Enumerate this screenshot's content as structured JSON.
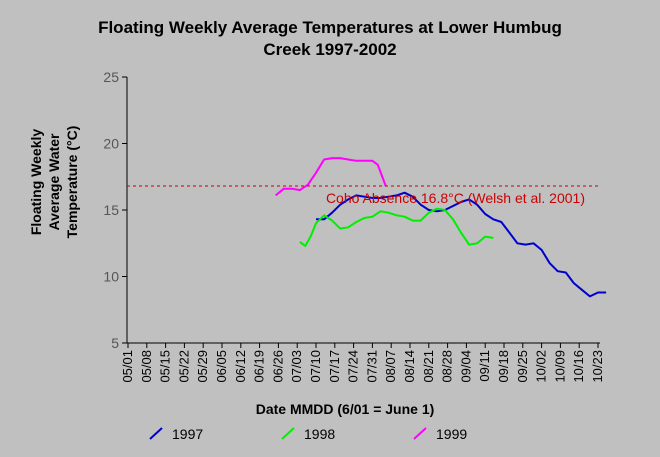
{
  "chart_data": {
    "type": "line",
    "title_line1": "Floating Weekly Average Temperatures at Lower Humbug",
    "title_line2": "Creek 1997-2002",
    "xlabel": "Date MMDD (6/01 = June 1)",
    "ylabel_lines": [
      "Floating Weekly",
      "Average Water",
      "Temperature (°C)"
    ],
    "ylim": [
      5,
      25
    ],
    "yticks": [
      "5",
      "10",
      "15",
      "20",
      "25"
    ],
    "x_ticks": [
      "05/01",
      "05/08",
      "05/15",
      "05/22",
      "05/29",
      "06/05",
      "06/12",
      "06/19",
      "06/26",
      "07/03",
      "07/10",
      "07/17",
      "07/24",
      "07/31",
      "08/07",
      "08/14",
      "08/21",
      "08/28",
      "09/04",
      "09/11",
      "09/18",
      "09/25",
      "10/02",
      "10/09",
      "10/16",
      "10/23"
    ],
    "grid": false,
    "legend_position": "bottom",
    "reference_line": {
      "value": 16.8,
      "label": "Coho Absence 16.8°C (Welsh et al. 2001)",
      "color": "#cc0000"
    },
    "series": [
      {
        "name": "1997",
        "color": "#0000cc",
        "points": [
          [
            "07/10",
            14.3
          ],
          [
            "07/13",
            14.3
          ],
          [
            "07/16",
            14.8
          ],
          [
            "07/19",
            15.4
          ],
          [
            "07/22",
            15.8
          ],
          [
            "07/25",
            16.1
          ],
          [
            "07/28",
            16.0
          ],
          [
            "07/31",
            15.9
          ],
          [
            "08/03",
            15.9
          ],
          [
            "08/06",
            16.0
          ],
          [
            "08/09",
            16.1
          ],
          [
            "08/12",
            16.3
          ],
          [
            "08/15",
            16.0
          ],
          [
            "08/18",
            15.4
          ],
          [
            "08/21",
            15.0
          ],
          [
            "08/24",
            14.9
          ],
          [
            "08/27",
            15.0
          ],
          [
            "08/30",
            15.3
          ],
          [
            "09/02",
            15.6
          ],
          [
            "09/05",
            15.8
          ],
          [
            "09/08",
            15.4
          ],
          [
            "09/11",
            14.7
          ],
          [
            "09/14",
            14.3
          ],
          [
            "09/17",
            14.1
          ],
          [
            "09/20",
            13.3
          ],
          [
            "09/23",
            12.5
          ],
          [
            "09/26",
            12.4
          ],
          [
            "09/29",
            12.5
          ],
          [
            "10/02",
            12.0
          ],
          [
            "10/05",
            11.0
          ],
          [
            "10/08",
            10.4
          ],
          [
            "10/11",
            10.3
          ],
          [
            "10/14",
            9.5
          ],
          [
            "10/17",
            9.0
          ],
          [
            "10/20",
            8.5
          ],
          [
            "10/23",
            8.8
          ],
          [
            "10/26",
            8.8
          ]
        ]
      },
      {
        "name": "1998",
        "color": "#00ee00",
        "points": [
          [
            "07/04",
            12.6
          ],
          [
            "07/06",
            12.3
          ],
          [
            "07/08",
            13.0
          ],
          [
            "07/10",
            14.0
          ],
          [
            "07/13",
            14.6
          ],
          [
            "07/16",
            14.2
          ],
          [
            "07/19",
            13.6
          ],
          [
            "07/22",
            13.7
          ],
          [
            "07/25",
            14.1
          ],
          [
            "07/28",
            14.4
          ],
          [
            "07/31",
            14.5
          ],
          [
            "08/03",
            14.9
          ],
          [
            "08/06",
            14.8
          ],
          [
            "08/09",
            14.6
          ],
          [
            "08/12",
            14.5
          ],
          [
            "08/15",
            14.2
          ],
          [
            "08/18",
            14.2
          ],
          [
            "08/21",
            14.8
          ],
          [
            "08/24",
            15.1
          ],
          [
            "08/27",
            15.0
          ],
          [
            "08/30",
            14.3
          ],
          [
            "09/02",
            13.3
          ],
          [
            "09/05",
            12.4
          ],
          [
            "09/08",
            12.5
          ],
          [
            "09/11",
            13.0
          ],
          [
            "09/14",
            12.9
          ]
        ]
      },
      {
        "name": "1999",
        "color": "#ff00ff",
        "points": [
          [
            "06/25",
            16.1
          ],
          [
            "06/28",
            16.6
          ],
          [
            "07/01",
            16.6
          ],
          [
            "07/04",
            16.5
          ],
          [
            "07/07",
            16.9
          ],
          [
            "07/10",
            17.8
          ],
          [
            "07/13",
            18.8
          ],
          [
            "07/16",
            18.9
          ],
          [
            "07/19",
            18.9
          ],
          [
            "07/22",
            18.8
          ],
          [
            "07/25",
            18.7
          ],
          [
            "07/28",
            18.7
          ],
          [
            "07/31",
            18.7
          ],
          [
            "08/02",
            18.4
          ],
          [
            "08/05",
            16.8
          ]
        ]
      }
    ]
  }
}
